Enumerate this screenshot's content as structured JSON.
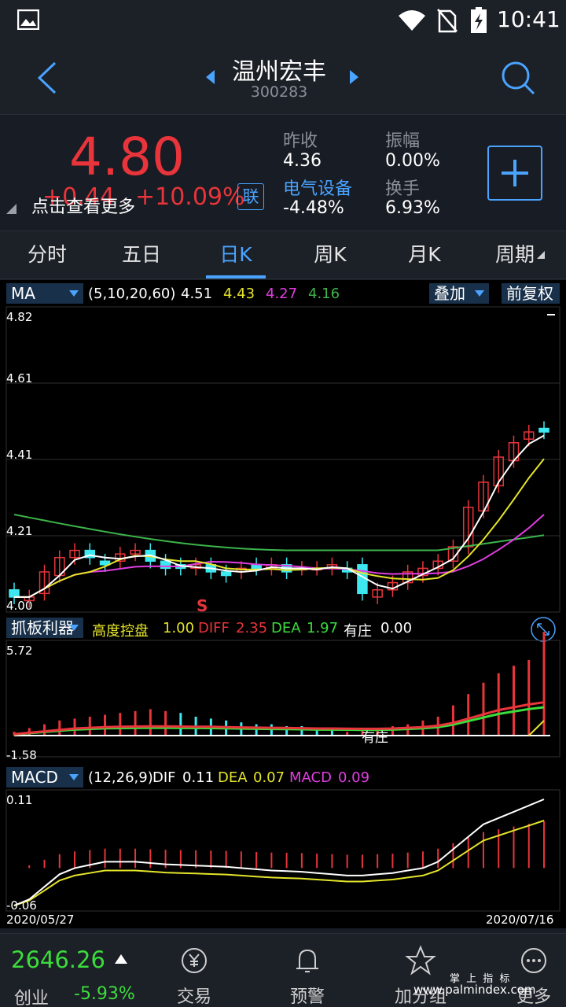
{
  "status_bar": {
    "time": "10:41"
  },
  "header": {
    "stock_name": "温州宏丰",
    "stock_code": "300283"
  },
  "quote": {
    "price": "4.80",
    "change": "+0.44",
    "change_pct": "+10.09%",
    "hint": "点击查看更多",
    "link_label": "联",
    "prev_close_label": "昨收",
    "prev_close": "4.36",
    "amplitude_label": "振幅",
    "amplitude": "0.00%",
    "sector_label": "电气设备",
    "sector_change": "-4.48%",
    "turnover_label": "换手",
    "turnover": "6.93%"
  },
  "tabs": [
    "分时",
    "五日",
    "日K",
    "周K",
    "月K",
    "周期"
  ],
  "active_tab": 2,
  "ma_panel": {
    "selector": "MA",
    "params": "(5,10,20,60)",
    "ma5": "4.51",
    "ma10": "4.43",
    "ma20": "4.27",
    "ma60": "4.16",
    "overlay_btn": "叠加",
    "adjust_btn": "前复权",
    "y_labels": [
      "4.82",
      "4.61",
      "4.41",
      "4.21",
      "4.00"
    ],
    "marker": "S"
  },
  "indicator_panel": {
    "selector": "抓板利器",
    "name": "高度控盘",
    "name_value": "1.00",
    "diff_label": "DIFF",
    "diff_value": "2.35",
    "dea_label": "DEA",
    "dea_value": "1.97",
    "zhuang_label": "有庄",
    "zhuang_value": "0.00",
    "y_top": "5.72",
    "y_bottom": "-1.58",
    "inline_label": "有庄"
  },
  "macd_panel": {
    "selector": "MACD",
    "params": "(12,26,9)",
    "dif_label": "DIF",
    "dif_value": "0.11",
    "dea_label": "DEA",
    "dea_value": "0.07",
    "macd_label": "MACD",
    "macd_value": "0.09",
    "y_top": "0.11",
    "y_bottom": "-0.06",
    "date_start": "2020/05/27",
    "date_end": "2020/07/16"
  },
  "footer": {
    "index_value": "2646.26",
    "index_name": "创业",
    "index_change": "-5.93%",
    "items": [
      "交易",
      "预警",
      "加分组",
      "更多"
    ]
  },
  "watermark": {
    "line1": "掌 上 指 标",
    "line2": "www.palmindex.com"
  },
  "colors": {
    "up": "#e8343a",
    "down": "#3de8f0",
    "accent": "#4aa3ff",
    "ma5": "#ffffff",
    "ma10": "#e4e42a",
    "ma20": "#e03de0",
    "ma60": "#3cb44b"
  }
}
